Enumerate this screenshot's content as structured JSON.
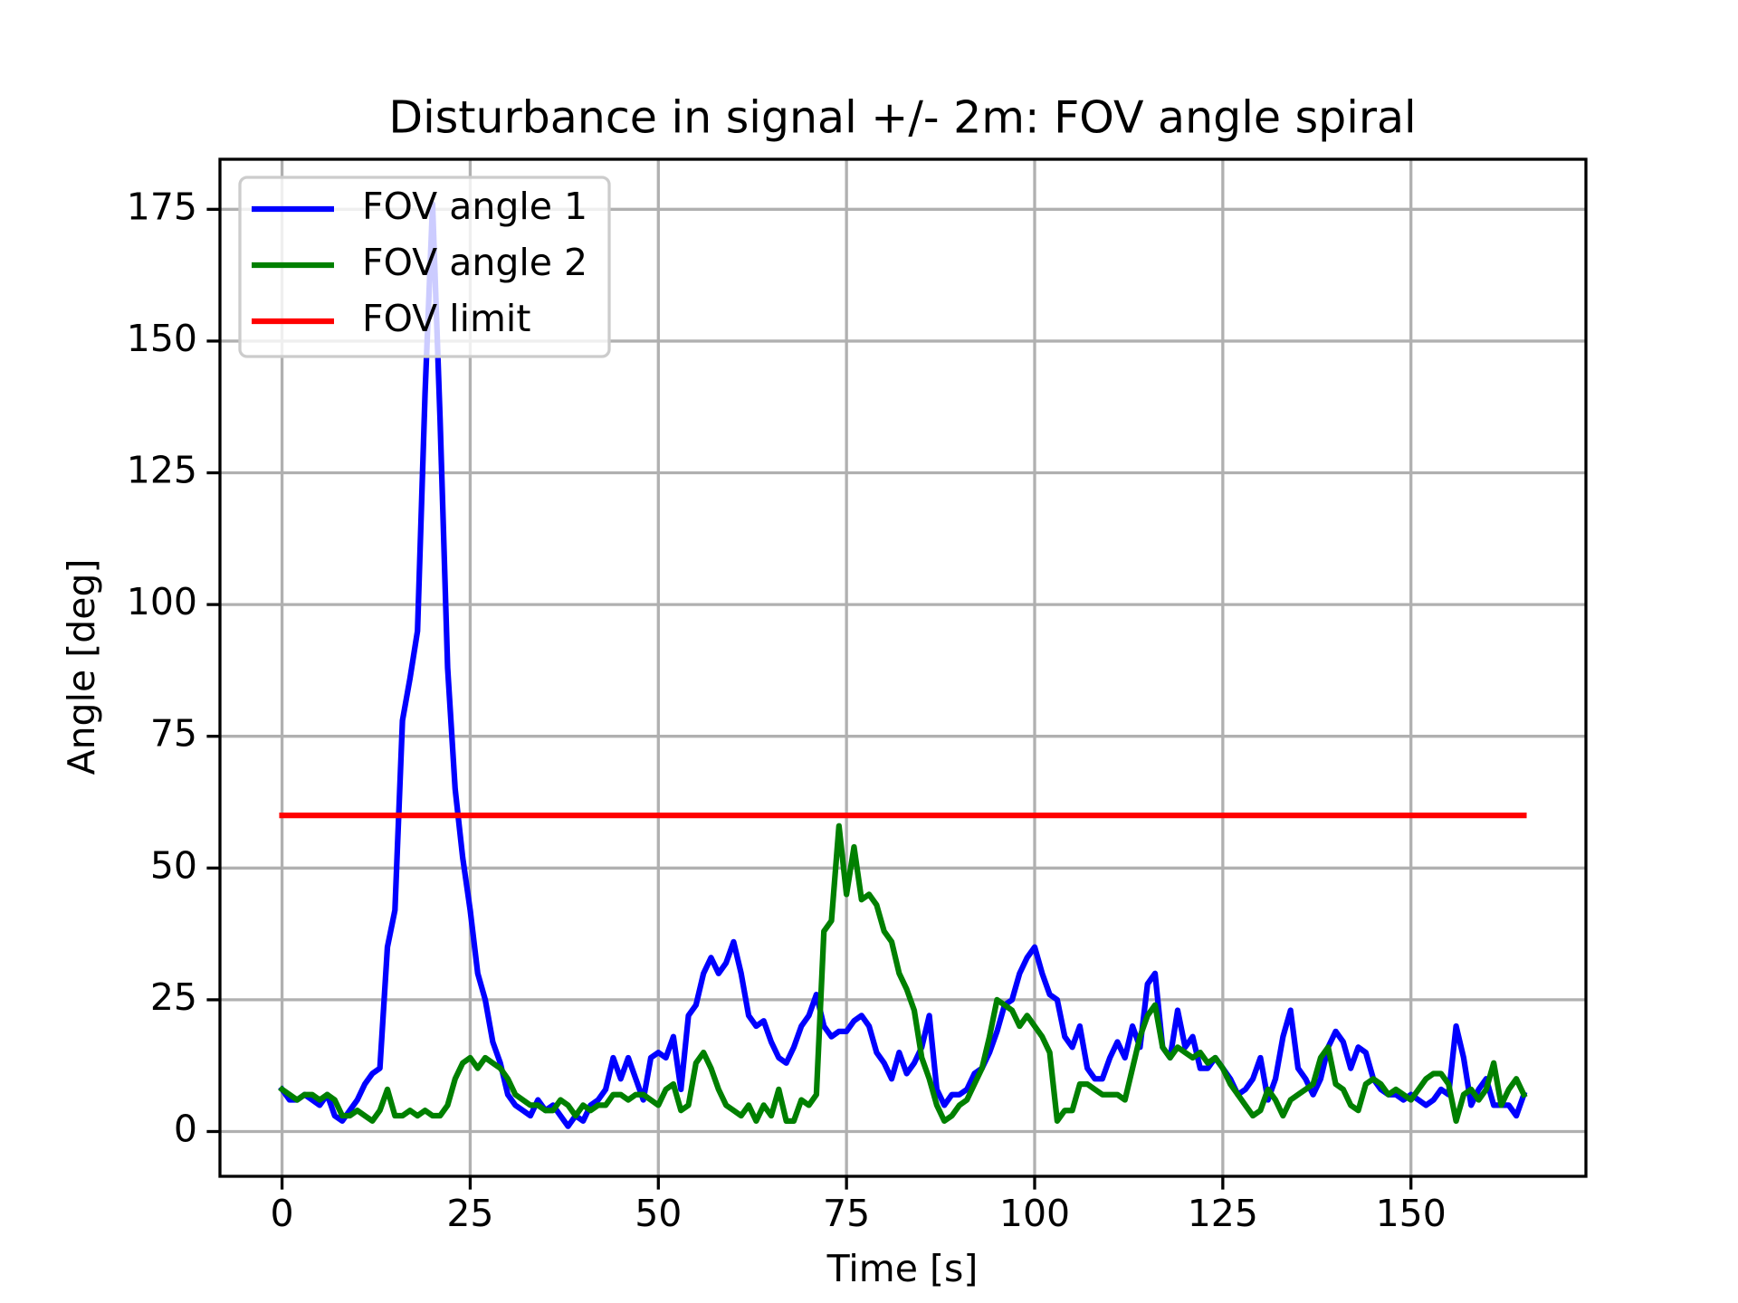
{
  "chart_data": {
    "type": "line",
    "title": "Disturbance in signal +/- 2m: FOV angle spiral",
    "xlabel": "Time [s]",
    "ylabel": "Angle [deg]",
    "x": [
      0,
      1,
      2,
      3,
      4,
      5,
      6,
      7,
      8,
      9,
      10,
      11,
      12,
      13,
      14,
      15,
      16,
      17,
      18,
      19,
      20,
      21,
      22,
      23,
      24,
      25,
      26,
      27,
      28,
      29,
      30,
      31,
      32,
      33,
      34,
      35,
      36,
      37,
      38,
      39,
      40,
      41,
      42,
      43,
      44,
      45,
      46,
      47,
      48,
      49,
      50,
      51,
      52,
      53,
      54,
      55,
      56,
      57,
      58,
      59,
      60,
      61,
      62,
      63,
      64,
      65,
      66,
      67,
      68,
      69,
      70,
      71,
      72,
      73,
      74,
      75,
      76,
      77,
      78,
      79,
      80,
      81,
      82,
      83,
      84,
      85,
      86,
      87,
      88,
      89,
      90,
      91,
      92,
      93,
      94,
      95,
      96,
      97,
      98,
      99,
      100,
      101,
      102,
      103,
      104,
      105,
      106,
      107,
      108,
      109,
      110,
      111,
      112,
      113,
      114,
      115,
      116,
      117,
      118,
      119,
      120,
      121,
      122,
      123,
      124,
      125,
      126,
      127,
      128,
      129,
      130,
      131,
      132,
      133,
      134,
      135,
      136,
      137,
      138,
      139,
      140,
      141,
      142,
      143,
      144,
      145,
      146,
      147,
      148,
      149,
      150,
      151,
      152,
      153,
      154,
      155,
      156,
      157,
      158,
      159,
      160,
      161,
      162,
      163,
      164,
      165
    ],
    "series": [
      {
        "name": "FOV angle 1",
        "color": "#0000ff",
        "values": [
          8,
          6,
          6,
          7,
          6,
          5,
          7,
          3,
          2,
          4,
          6,
          9,
          11,
          12,
          35,
          42,
          78,
          86,
          95,
          140,
          176,
          135,
          88,
          65,
          52,
          42,
          30,
          25,
          17,
          13,
          7,
          5,
          4,
          3,
          6,
          4,
          5,
          3,
          1,
          3,
          2,
          5,
          6,
          8,
          14,
          10,
          14,
          10,
          6,
          14,
          15,
          14,
          18,
          8,
          22,
          24,
          30,
          33,
          30,
          32,
          36,
          30,
          22,
          20,
          21,
          17,
          14,
          13,
          16,
          20,
          22,
          26,
          20,
          18,
          19,
          19,
          21,
          22,
          20,
          15,
          13,
          10,
          15,
          11,
          13,
          16,
          22,
          8,
          5,
          7,
          7,
          8,
          11,
          12,
          15,
          19,
          24,
          25,
          30,
          33,
          35,
          30,
          26,
          25,
          18,
          16,
          20,
          12,
          10,
          10,
          14,
          17,
          14,
          20,
          16,
          28,
          30,
          16,
          14,
          23,
          16,
          18,
          12,
          12,
          14,
          12,
          10,
          7,
          8,
          10,
          14,
          6,
          10,
          18,
          23,
          12,
          10,
          7,
          10,
          16,
          19,
          17,
          12,
          16,
          15,
          10,
          8,
          7,
          7,
          6,
          7,
          6,
          5,
          6,
          8,
          7,
          20,
          14,
          5,
          8,
          10,
          5,
          5,
          5,
          3,
          7
        ]
      },
      {
        "name": "FOV angle 2",
        "color": "#008000",
        "values": [
          8,
          7,
          6,
          7,
          7,
          6,
          7,
          6,
          3,
          3,
          4,
          3,
          2,
          4,
          8,
          3,
          3,
          4,
          3,
          4,
          3,
          3,
          5,
          10,
          13,
          14,
          12,
          14,
          13,
          12,
          10,
          7,
          6,
          5,
          5,
          4,
          4,
          6,
          5,
          3,
          5,
          4,
          5,
          5,
          7,
          7,
          6,
          7,
          7,
          6,
          5,
          8,
          9,
          4,
          5,
          13,
          15,
          12,
          8,
          5,
          4,
          3,
          5,
          2,
          5,
          3,
          8,
          2,
          2,
          6,
          5,
          7,
          38,
          40,
          58,
          45,
          54,
          44,
          45,
          43,
          38,
          36,
          30,
          27,
          23,
          14,
          10,
          5,
          2,
          3,
          5,
          6,
          9,
          12,
          18,
          25,
          24,
          23,
          20,
          22,
          20,
          18,
          15,
          2,
          4,
          4,
          9,
          9,
          8,
          7,
          7,
          7,
          6,
          12,
          18,
          22,
          24,
          16,
          14,
          16,
          15,
          14,
          15,
          13,
          14,
          12,
          9,
          7,
          5,
          3,
          4,
          8,
          6,
          3,
          6,
          7,
          8,
          9,
          14,
          16,
          9,
          8,
          5,
          4,
          9,
          10,
          9,
          7,
          8,
          7,
          6,
          8,
          10,
          11,
          11,
          9,
          2,
          7,
          8,
          6,
          8,
          13,
          5,
          8,
          10,
          7
        ]
      },
      {
        "name": "FOV limit",
        "color": "#ff0000",
        "x": [
          0,
          165
        ],
        "values": [
          60,
          60
        ]
      }
    ],
    "xlim": [
      -8.25,
      173.25
    ],
    "ylim": [
      -8.5,
      184.5
    ],
    "xticks": [
      0,
      25,
      50,
      75,
      100,
      125,
      150
    ],
    "yticks": [
      0,
      25,
      50,
      75,
      100,
      125,
      150,
      175
    ],
    "grid": true,
    "legend": "upper left"
  }
}
